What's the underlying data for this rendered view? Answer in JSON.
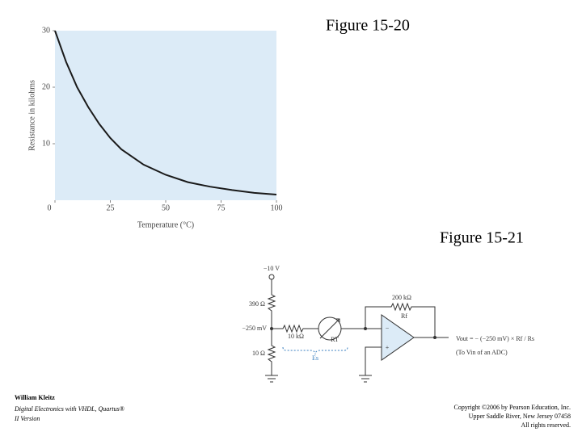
{
  "chart_data": {
    "type": "line",
    "ylabel": "Resistance in kilohms",
    "xlabel": "Temperature (°C)",
    "x": [
      0,
      5,
      10,
      15,
      20,
      25,
      30,
      40,
      50,
      60,
      70,
      80,
      90,
      100
    ],
    "series": [
      {
        "color": "#1a1a1a",
        "values": [
          30,
          24.5,
          20,
          16.5,
          13.5,
          11,
          9,
          6.3,
          4.5,
          3.2,
          2.4,
          1.8,
          1.3,
          1.0
        ]
      }
    ],
    "xlim": [
      0,
      100
    ],
    "xticks": [
      0,
      25,
      50,
      75,
      100
    ],
    "ylim": [
      0,
      30
    ],
    "yticks": [
      10,
      20,
      30
    ],
    "background": "#dcebf7"
  },
  "figures": [
    "Figure 15-20",
    "Figure 15-21"
  ],
  "circuit": {
    "supply": "−10 V",
    "r_top": "390 Ω",
    "node_voltage": "−250 mV",
    "r_series": "10 kΩ",
    "r_thermistor": "RT",
    "r_bottom": "10 Ω",
    "r_feedback_value": "200 kΩ",
    "r_feedback": "Rf",
    "source": "Es",
    "inverting": "−",
    "noninverting": "+",
    "output_formula": "Vout = − (−250 mV) × Rf / Rs",
    "output_note": "(To Vin of an ADC)"
  },
  "footer": {
    "author": "William Kleitz",
    "book_line1": "Digital Electronics with VHDL, Quartus® ",
    "book_line2": "II Version",
    "copyright1": "Copyright ©2006 by Pearson Education, Inc.",
    "copyright2": "Upper Saddle River, New Jersey 07458",
    "copyright3": "All rights reserved."
  }
}
